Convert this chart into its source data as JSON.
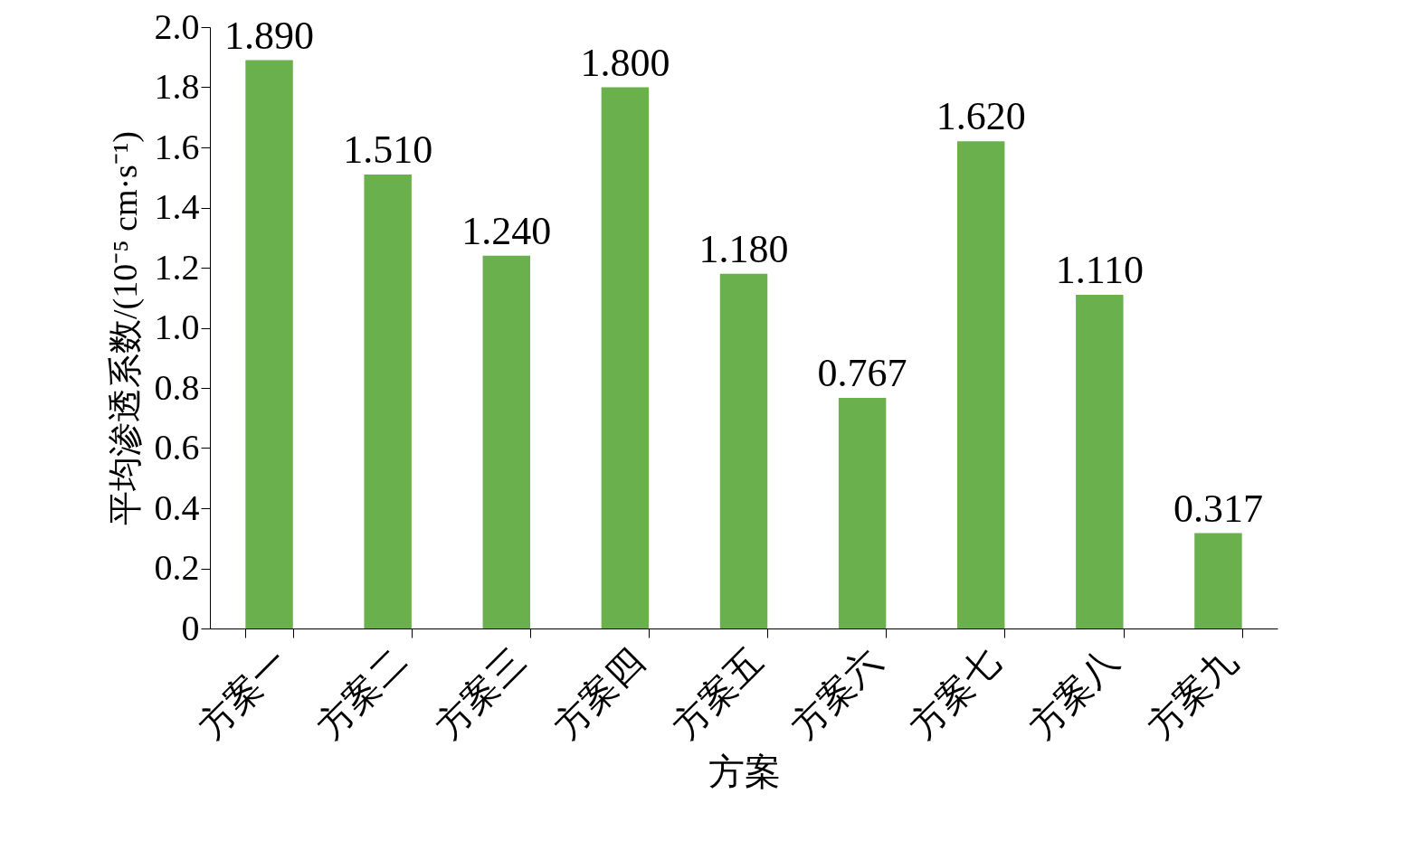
{
  "chart_data": {
    "type": "bar",
    "xlabel": "方案",
    "ylabel": "平均渗透系数/(10⁻⁵ cm·s⁻¹)",
    "categories": [
      "方案一",
      "方案二",
      "方案三",
      "方案四",
      "方案五",
      "方案六",
      "方案七",
      "方案八",
      "方案九"
    ],
    "values": [
      1.89,
      1.51,
      1.24,
      1.8,
      1.18,
      0.767,
      1.62,
      1.11,
      0.317
    ],
    "value_labels": [
      "1.890",
      "1.510",
      "1.240",
      "1.800",
      "1.180",
      "0.767",
      "1.620",
      "1.110",
      "0.317"
    ],
    "color": "#6ab04c",
    "ylim": [
      0,
      2.0
    ],
    "yticks": [
      0,
      {
        "value": 0.2,
        "label": "0.2"
      },
      {
        "value": 0.4,
        "label": "0.4"
      },
      {
        "value": 0.6,
        "label": "0.6"
      },
      {
        "value": 0.8,
        "label": "0.8"
      },
      {
        "value": 1.0,
        "label": "1.0"
      },
      {
        "value": 1.2,
        "label": "1.2"
      },
      {
        "value": 1.4,
        "label": "1.4"
      },
      {
        "value": 1.6,
        "label": "1.6"
      },
      {
        "value": 1.8,
        "label": "1.8"
      },
      {
        "value": 2.0,
        "label": "2.0"
      }
    ],
    "grid": false
  }
}
